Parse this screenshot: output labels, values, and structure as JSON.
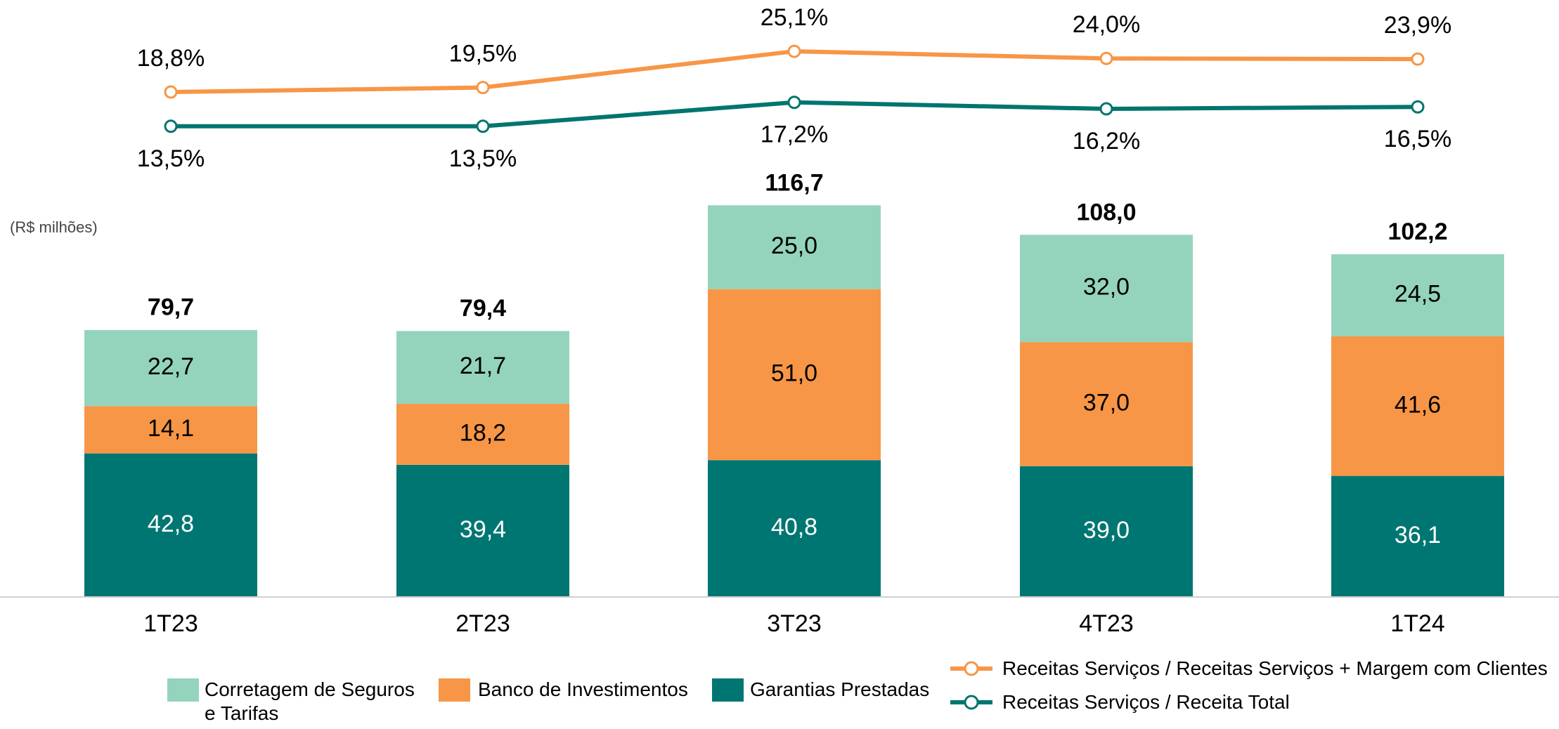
{
  "chart_data": {
    "type": "bar",
    "stacked": true,
    "unit_label": "(R$ milhões)",
    "categories": [
      "1T23",
      "2T23",
      "3T23",
      "4T23",
      "1T24"
    ],
    "series": [
      {
        "name": "Garantias Prestadas",
        "color": "#007672",
        "values": [
          42.8,
          39.4,
          40.8,
          39.0,
          36.1
        ],
        "value_labels": [
          "42,8",
          "39,4",
          "40,8",
          "39,0",
          "36,1"
        ]
      },
      {
        "name": "Banco de Investimentos",
        "color": "#f79646",
        "values": [
          14.1,
          18.2,
          51.0,
          37.0,
          41.6
        ],
        "value_labels": [
          "14,1",
          "18,2",
          "51,0",
          "37,0",
          "41,6"
        ]
      },
      {
        "name": "Corretagem de Seguros e Tarifas",
        "color": "#94d4bd",
        "values": [
          22.7,
          21.7,
          25.0,
          32.0,
          24.5
        ],
        "value_labels": [
          "22,7",
          "21,7",
          "25,0",
          "32,0",
          "24,5"
        ]
      }
    ],
    "totals": [
      79.7,
      79.4,
      116.7,
      108.0,
      102.2
    ],
    "total_labels": [
      "79,7",
      "79,4",
      "116,7",
      "108,0",
      "102,2"
    ],
    "ylim": [
      0,
      120
    ],
    "y2lim": [
      0,
      30
    ],
    "lines": [
      {
        "name": "Receitas Serviços / Receitas Serviços + Margem com Clientes",
        "color": "#f79646",
        "axis": "y2",
        "values": [
          18.8,
          19.5,
          25.1,
          24.0,
          23.9
        ],
        "value_labels": [
          "18,8%",
          "19,5%",
          "25,1%",
          "24,0%",
          "23,9%"
        ]
      },
      {
        "name": "Receitas Serviços / Receita Total",
        "color": "#00756f",
        "axis": "y2",
        "values": [
          13.5,
          13.5,
          17.2,
          16.2,
          16.5
        ],
        "value_labels": [
          "13,5%",
          "13,5%",
          "17,2%",
          "16,2%",
          "16,5%"
        ]
      }
    ]
  }
}
